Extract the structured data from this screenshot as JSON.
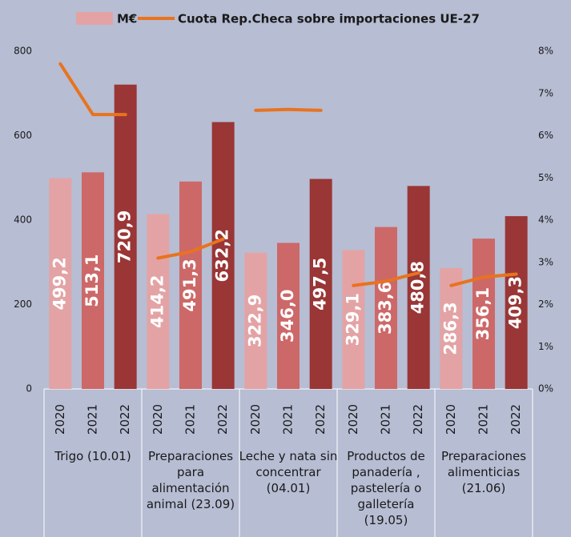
{
  "chart_data": {
    "type": "bar",
    "categories": [
      "2020",
      "2021",
      "2022",
      "2020",
      "2021",
      "2022",
      "2020",
      "2021",
      "2022",
      "2020",
      "2021",
      "2022",
      "2020",
      "2021",
      "2022"
    ],
    "groups": [
      "Trigo (10.01)",
      "Preparaciones para alimentación animal  (23.09)",
      "Leche y nata sin concentrar (04.01)",
      "Productos de panadería , pastelería o galletería (19.05)",
      "Preparaciones alimenticias (21.06)"
    ],
    "group_size": 3,
    "series": [
      {
        "name": "M€",
        "type": "bar",
        "color": "#e3a3a5",
        "year_colors": [
          "#e3a3a5",
          "#cd6868",
          "#9a3636"
        ],
        "values": [
          499.2,
          513.1,
          720.9,
          414.2,
          491.3,
          632.2,
          322.9,
          346.0,
          497.5,
          329.1,
          383.6,
          480.8,
          286.3,
          356.1,
          409.3
        ],
        "value_labels": [
          "499,2",
          "513,1",
          "720,9",
          "414,2",
          "491,3",
          "632,2",
          "322,9",
          "346,0",
          "497,5",
          "329,1",
          "383,6",
          "480,8",
          "286,3",
          "356,1",
          "409,3"
        ]
      },
      {
        "name": "Cuota Rep.Checa sobre importaciones UE-27",
        "type": "line",
        "axis": "y2",
        "color": "#e8731f",
        "values": [
          7.7,
          6.5,
          6.5,
          3.1,
          3.25,
          3.55,
          6.6,
          6.62,
          6.6,
          2.45,
          2.55,
          2.75,
          2.45,
          2.65,
          2.72
        ]
      }
    ],
    "ylim": [
      0,
      800
    ],
    "yticks": [
      0,
      200,
      400,
      600,
      800
    ],
    "y2lim": [
      0,
      8
    ],
    "y2ticks": [
      {
        "value": 0,
        "label": "0%"
      },
      {
        "value": 1,
        "label": "1%"
      },
      {
        "value": 2,
        "label": "2%"
      },
      {
        "value": 3,
        "label": "3%"
      },
      {
        "value": 4,
        "label": "4%"
      },
      {
        "value": 5,
        "label": "5%"
      },
      {
        "value": 6,
        "label": "6%"
      },
      {
        "value": 7,
        "label": "7%"
      },
      {
        "value": 8,
        "label": "8%"
      }
    ]
  }
}
